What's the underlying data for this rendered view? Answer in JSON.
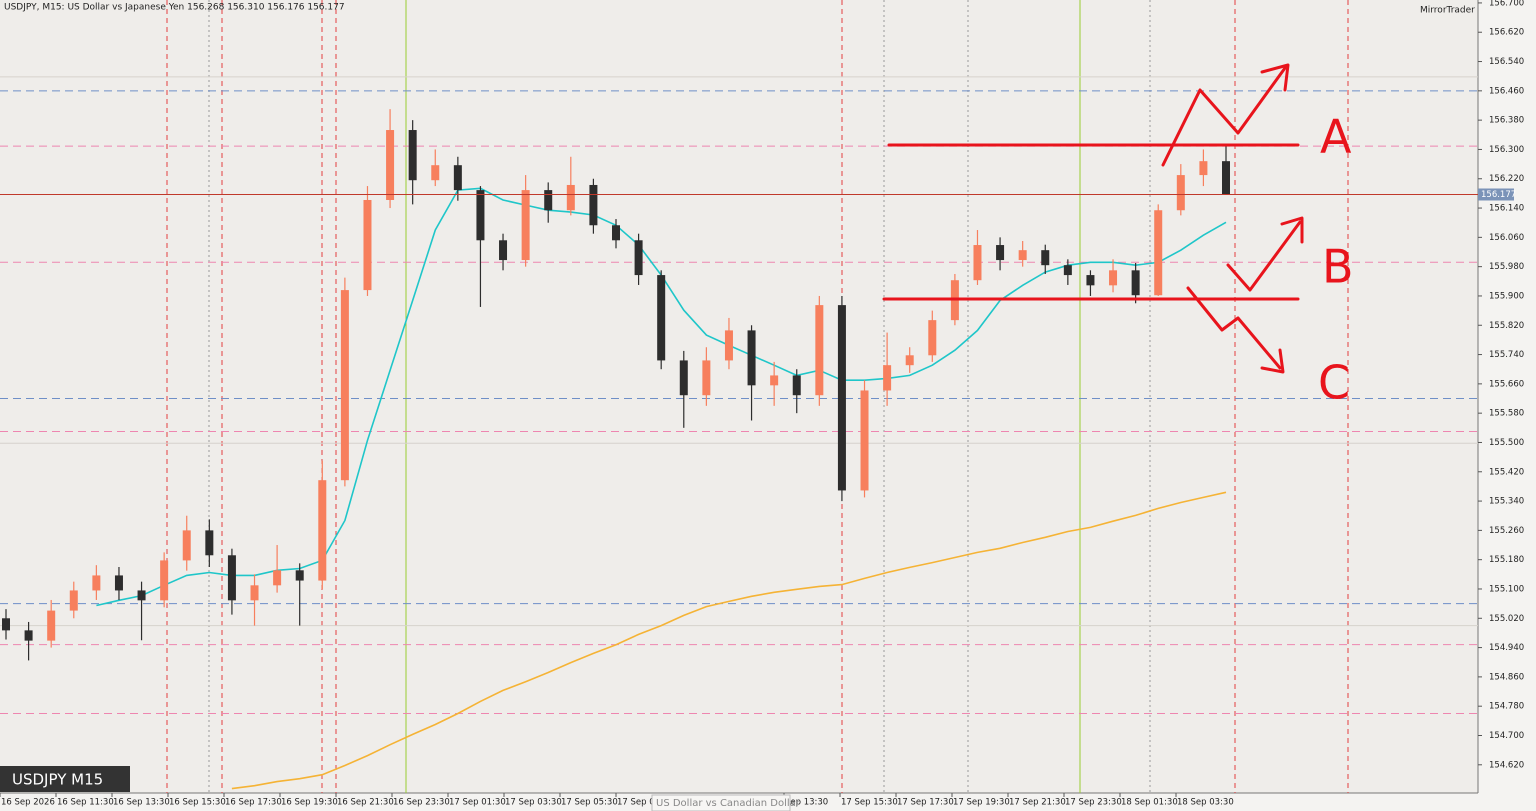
{
  "chart_data": {
    "type": "candlestick",
    "title": "USDJPY, M15:  US Dollar vs Japanese Yen  156.268 156.310 156.176 156.177",
    "brand": "MirrorTrader",
    "symbol_label": "USDJPY M15",
    "tooltip": "US Dollar vs Canadian Dollar",
    "annotations": [
      "A",
      "B",
      "C"
    ],
    "up_color": "#f77f5d",
    "down_color": "#2d2d2d",
    "price_line_color": "#c0392b",
    "x_labels": [
      "16 Sep 2026",
      "16 Sep 11:30",
      "16 Sep 13:30",
      "16 Sep 15:30",
      "16 Sep 17:30",
      "16 Sep 19:30",
      "16 Sep 21:30",
      "16 Sep 23:30",
      "17 Sep 01:30",
      "17 Sep 03:30",
      "17 Sep 05:30",
      "17 Sep 0",
      null,
      null,
      "Sep 13:30",
      "17 Sep 15:30",
      "17 Sep 17:30",
      "17 Sep 19:30",
      "17 Sep 21:30",
      "17 Sep 23:30",
      "18 Sep 01:30",
      "18 Sep 03:30"
    ],
    "open": [
      155.02,
      154.987,
      154.959,
      155.041,
      155.096,
      155.137,
      155.096,
      155.069,
      155.178,
      155.26,
      155.192,
      155.069,
      155.11,
      155.151,
      155.123,
      155.397,
      155.916,
      156.162,
      156.353,
      156.216,
      156.257,
      156.189,
      156.052,
      155.998,
      156.189,
      156.134,
      156.203,
      156.093,
      156.052,
      155.957,
      155.724,
      155.629,
      155.724,
      155.806,
      155.656,
      155.683,
      155.629,
      155.875,
      155.369,
      155.642,
      155.711,
      155.738,
      155.834,
      155.943,
      156.039,
      155.998,
      156.025,
      155.984,
      155.957,
      155.929,
      155.97,
      155.902,
      156.134,
      156.23,
      156.268
    ],
    "high": [
      155.045,
      155.01,
      155.07,
      155.12,
      155.165,
      155.16,
      155.12,
      155.2,
      155.3,
      155.29,
      155.21,
      155.14,
      155.22,
      155.17,
      155.45,
      155.95,
      156.2,
      156.41,
      156.38,
      156.3,
      156.28,
      156.2,
      156.07,
      156.23,
      156.21,
      156.28,
      156.22,
      156.11,
      156.07,
      155.97,
      155.75,
      155.76,
      155.84,
      155.82,
      155.72,
      155.7,
      155.9,
      155.9,
      155.67,
      155.8,
      155.76,
      155.86,
      155.96,
      156.08,
      156.06,
      156.05,
      156.04,
      156.0,
      155.97,
      156.0,
      155.99,
      156.15,
      156.26,
      156.3,
      156.31
    ],
    "low": [
      154.962,
      154.905,
      154.94,
      155.02,
      155.07,
      155.07,
      154.96,
      155.05,
      155.15,
      155.16,
      155.03,
      155.0,
      155.09,
      155.0,
      155.1,
      155.38,
      155.9,
      156.14,
      156.15,
      156.2,
      156.16,
      155.87,
      155.97,
      155.98,
      156.1,
      156.12,
      156.07,
      156.03,
      155.93,
      155.7,
      155.54,
      155.6,
      155.7,
      155.56,
      155.6,
      155.58,
      155.6,
      155.34,
      155.35,
      155.6,
      155.69,
      155.72,
      155.82,
      155.93,
      155.97,
      155.98,
      155.96,
      155.93,
      155.9,
      155.91,
      155.88,
      155.9,
      156.12,
      156.2,
      156.176
    ],
    "close": [
      154.987,
      154.959,
      155.041,
      155.096,
      155.137,
      155.096,
      155.069,
      155.178,
      155.26,
      155.192,
      155.069,
      155.11,
      155.151,
      155.123,
      155.397,
      155.916,
      156.162,
      156.353,
      156.216,
      156.257,
      156.189,
      156.052,
      155.998,
      156.189,
      156.134,
      156.203,
      156.093,
      156.052,
      155.957,
      155.724,
      155.629,
      155.724,
      155.806,
      155.656,
      155.683,
      155.629,
      155.875,
      155.369,
      155.642,
      155.711,
      155.738,
      155.834,
      155.943,
      156.039,
      155.998,
      156.025,
      155.984,
      155.957,
      155.929,
      155.97,
      155.902,
      156.134,
      156.23,
      156.268,
      156.177
    ],
    "overlays": [
      {
        "color": "#1fc6c9",
        "values": [
          null,
          null,
          null,
          null,
          155.055,
          155.069,
          155.082,
          155.11,
          155.137,
          155.145,
          155.137,
          155.137,
          155.151,
          155.156,
          155.178,
          155.287,
          155.506,
          155.697,
          155.888,
          156.08,
          156.189,
          156.194,
          156.162,
          156.148,
          156.134,
          156.129,
          156.121,
          156.093,
          156.039,
          155.957,
          155.861,
          155.793,
          155.765,
          155.738,
          155.711,
          155.683,
          155.697,
          155.67,
          155.67,
          155.675,
          155.683,
          155.711,
          155.752,
          155.806,
          155.888,
          155.929,
          155.965,
          155.984,
          155.992,
          155.992,
          155.984,
          155.992,
          156.025,
          156.066,
          156.101
        ]
      },
      {
        "color": "#f5b335",
        "values": [
          null,
          null,
          null,
          null,
          null,
          null,
          null,
          null,
          null,
          null,
          154.555,
          154.563,
          154.574,
          154.582,
          154.593,
          154.618,
          154.645,
          154.675,
          154.703,
          154.73,
          154.76,
          154.793,
          154.823,
          154.847,
          154.872,
          154.899,
          154.924,
          154.948,
          154.976,
          155.0,
          155.028,
          155.052,
          155.066,
          155.08,
          155.091,
          155.099,
          155.107,
          155.112,
          155.129,
          155.145,
          155.159,
          155.172,
          155.186,
          155.2,
          155.211,
          155.227,
          155.241,
          155.257,
          155.268,
          155.285,
          155.301,
          155.32,
          155.336,
          155.35,
          155.364
        ]
      }
    ],
    "levels": [
      {
        "value": 156.498,
        "color": "#d6d2cc",
        "style": "solid"
      },
      {
        "value": 155.498,
        "color": "#d6d2cc",
        "style": "solid"
      },
      {
        "value": 155.0,
        "color": "#d6d2cc",
        "style": "solid"
      },
      {
        "value": 156.46,
        "color": "#6f8fc7",
        "style": "dashed"
      },
      {
        "value": 155.62,
        "color": "#6f8fc7",
        "style": "dashed"
      },
      {
        "value": 155.06,
        "color": "#6f8fc7",
        "style": "dashed"
      },
      {
        "value": 156.309,
        "color": "#ee86b0",
        "style": "dashed"
      },
      {
        "value": 155.992,
        "color": "#ee86b0",
        "style": "dashed"
      },
      {
        "value": 155.53,
        "color": "#ee86b0",
        "style": "dashed"
      },
      {
        "value": 154.948,
        "color": "#ee86b0",
        "style": "dashed"
      },
      {
        "value": 154.76,
        "color": "#ee86b0",
        "style": "dashed"
      }
    ],
    "ylim": [
      154.543,
      156.708
    ],
    "yticks": [
      {
        "value": 156.7,
        "label": "156.700"
      },
      {
        "value": 156.62,
        "label": "156.620"
      },
      {
        "value": 156.54,
        "label": "156.540"
      },
      {
        "value": 156.46,
        "label": "156.460"
      },
      {
        "value": 156.38,
        "label": "156.380"
      },
      {
        "value": 156.3,
        "label": "156.300"
      },
      {
        "value": 156.22,
        "label": "156.220"
      },
      {
        "value": 156.14,
        "label": "156.140"
      },
      {
        "value": 156.06,
        "label": "156.060"
      },
      {
        "value": 155.98,
        "label": "155.980"
      },
      {
        "value": 155.9,
        "label": "155.900"
      },
      {
        "value": 155.82,
        "label": "155.820"
      },
      {
        "value": 155.74,
        "label": "155.740"
      },
      {
        "value": 155.66,
        "label": "155.660"
      },
      {
        "value": 155.58,
        "label": "155.580"
      },
      {
        "value": 155.5,
        "label": "155.500"
      },
      {
        "value": 155.42,
        "label": "155.420"
      },
      {
        "value": 155.34,
        "label": "155.340"
      },
      {
        "value": 155.26,
        "label": "155.260"
      },
      {
        "value": 155.18,
        "label": "155.180"
      },
      {
        "value": 155.1,
        "label": "155.100"
      },
      {
        "value": 155.02,
        "label": "155.020"
      },
      {
        "value": 154.94,
        "label": "154.940"
      },
      {
        "value": 154.86,
        "label": "154.860"
      },
      {
        "value": 154.78,
        "label": "154.780"
      },
      {
        "value": 154.7,
        "label": "154.700"
      },
      {
        "value": 154.62,
        "label": "154.620"
      }
    ]
  }
}
